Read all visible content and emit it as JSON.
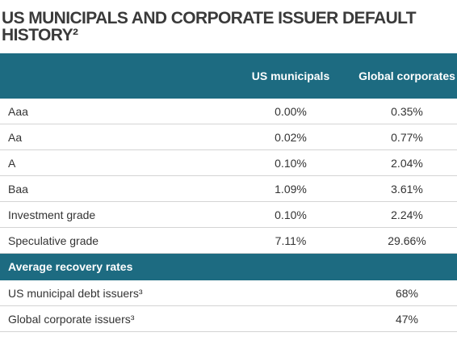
{
  "header": {
    "title": "US MUNICIPALS AND CORPORATE ISSUER DEFAULT HISTORY²"
  },
  "table": {
    "column_headers": [
      "US municipals",
      "Global corporates"
    ],
    "rows": [
      [
        "Aaa",
        "0.00%",
        "0.35%"
      ],
      [
        "Aa",
        "0.02%",
        "0.77%"
      ],
      [
        "A",
        "0.10%",
        "2.04%"
      ],
      [
        "Baa",
        "1.09%",
        "3.61%"
      ],
      [
        "Investment grade",
        "0.10%",
        "2.24%"
      ],
      [
        "Speculative grade",
        "7.11%",
        "29.66%"
      ]
    ]
  },
  "recovery": {
    "title": "Average recovery rates",
    "rows": [
      [
        "US municipal debt issuers³",
        "68%"
      ],
      [
        "Global corporate issuers³",
        "47%"
      ]
    ]
  }
}
